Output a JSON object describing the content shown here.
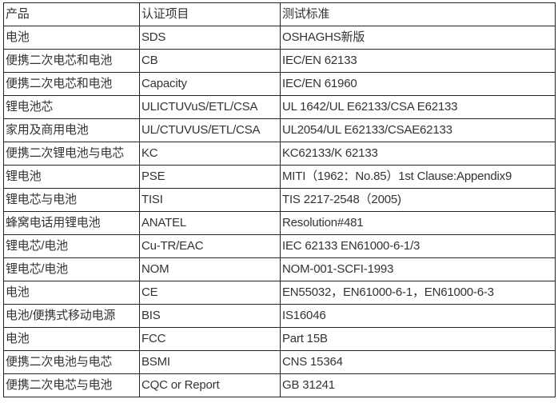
{
  "headers": [
    "产品",
    "认证项目",
    "测试标准"
  ],
  "rows": [
    [
      "电池",
      "SDS",
      "OSHAGHS新版"
    ],
    [
      "便携二次电芯和电池",
      "CB",
      "IEC/EN 62133"
    ],
    [
      "便携二次电芯和电池",
      "Capacity",
      "IEC/EN 61960"
    ],
    [
      "锂电池芯",
      "ULICTUVuS/ETL/CSA",
      "UL 1642/UL E62133/CSA  E62133"
    ],
    [
      "家用及商用电池",
      "UL/CTUVUS/ETL/CSA",
      "UL2054/UL E62133/CSAE62133"
    ],
    [
      "便携二次锂电池与电芯",
      "KC",
      "KC62133/K 62133"
    ],
    [
      "锂电池",
      "PSE",
      "MITI（1962：No.85）1st Clause:Appendix9"
    ],
    [
      "锂电芯与电池",
      "TISI",
      "TIS 2217-2548（2005)"
    ],
    [
      "蜂窝电话用锂电池",
      "ANATEL",
      "Resolution#481"
    ],
    [
      "锂电芯/电池",
      "Cu-TR/EAC",
      "IEC 62133 EN61000-6-1/3"
    ],
    [
      "锂电芯/电池",
      "NOM",
      "NOM-001-SCFI-1993"
    ],
    [
      "电池",
      "CE",
      "EN55032，EN61000-6-1，EN61000-6-3"
    ],
    [
      "电池/便携式移动电源",
      "BIS",
      "IS16046"
    ],
    [
      "电池",
      "FCC",
      "Part 15B"
    ],
    [
      "便携二次电池与电芯",
      "BSMI",
      "CNS 15364"
    ],
    [
      "便携二次电芯与电池",
      "CQC or Report",
      "GB 31241"
    ]
  ]
}
